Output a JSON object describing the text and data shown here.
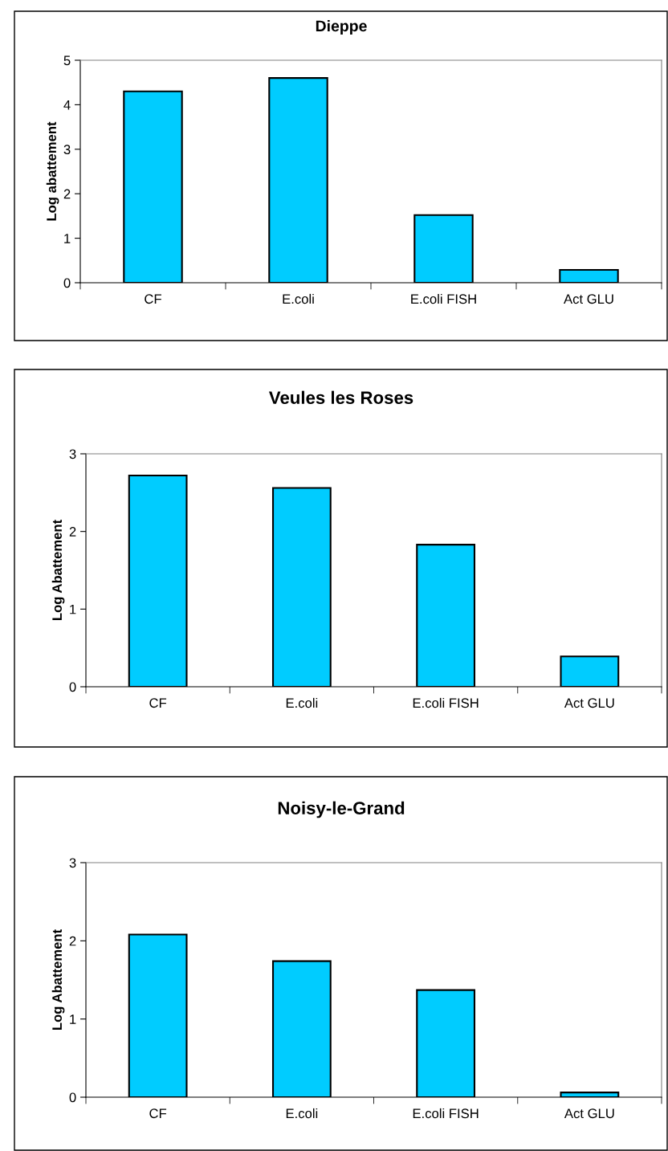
{
  "chart_data": [
    {
      "type": "bar",
      "title": "Dieppe",
      "ylabel": "Log abattement",
      "categories": [
        "CF",
        "E.coli",
        "E.coli FISH",
        "Act GLU"
      ],
      "values": [
        4.3,
        4.6,
        1.52,
        0.29
      ],
      "color": "#00ccff",
      "ylim": [
        0,
        5
      ],
      "yticks": [
        0,
        1,
        2,
        3,
        4,
        5
      ],
      "grid": false,
      "legend": false
    },
    {
      "type": "bar",
      "title": "Veules les Roses",
      "ylabel": "Log Abattement",
      "categories": [
        "CF",
        "E.coli",
        "E.coli FISH",
        "Act GLU"
      ],
      "values": [
        2.72,
        2.56,
        1.83,
        0.39
      ],
      "color": "#00ccff",
      "ylim": [
        0,
        3
      ],
      "yticks": [
        0,
        1,
        2,
        3
      ],
      "grid": false,
      "legend": false
    },
    {
      "type": "bar",
      "title": "Noisy-le-Grand",
      "ylabel": "Log Abattement",
      "categories": [
        "CF",
        "E.coli",
        "E.coli FISH",
        "Act GLU"
      ],
      "values": [
        2.08,
        1.74,
        1.37,
        0.06
      ],
      "color": "#00ccff",
      "ylim": [
        0,
        3
      ],
      "yticks": [
        0,
        1,
        2,
        3
      ],
      "grid": false,
      "legend": false
    }
  ]
}
